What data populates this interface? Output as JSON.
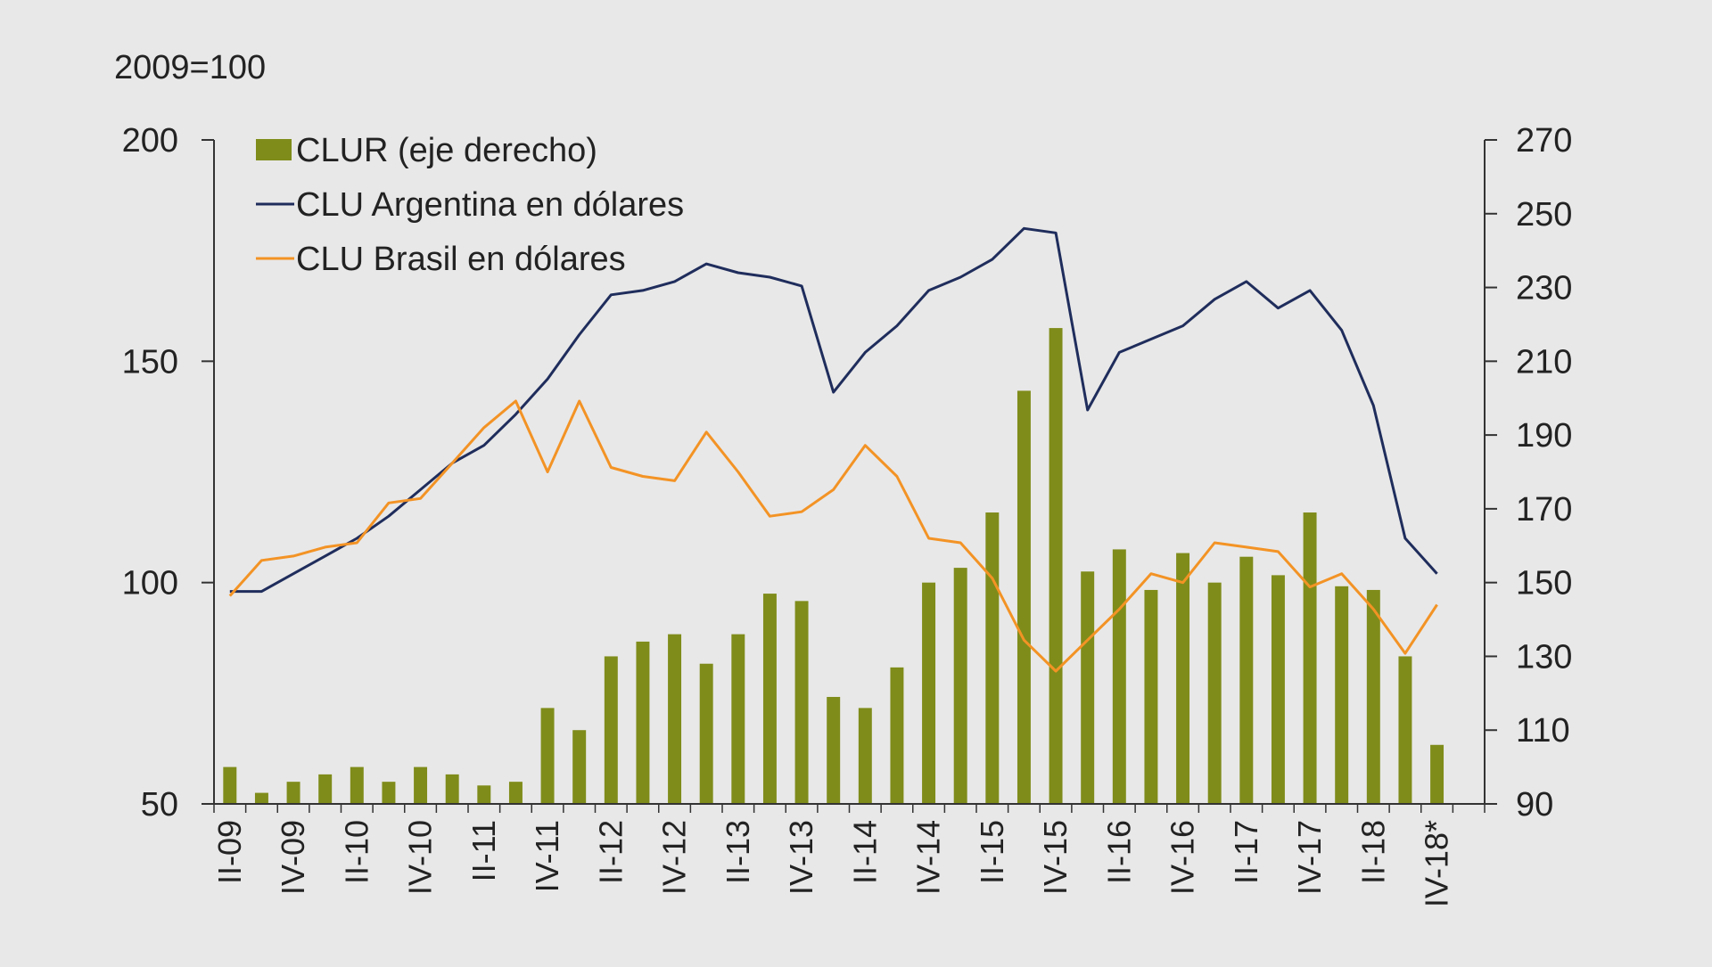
{
  "chart_data": {
    "type": "bar-line-combo",
    "y_left_label": "2009=100",
    "y_left_lim": [
      50,
      200
    ],
    "y_left_ticks": [
      50,
      100,
      150,
      200
    ],
    "y_right_lim": [
      90,
      270
    ],
    "y_right_ticks": [
      90,
      110,
      130,
      150,
      170,
      190,
      210,
      230,
      250,
      270
    ],
    "x_tick_labels": [
      "II-09",
      "IV-09",
      "II-10",
      "IV-10",
      "II-11",
      "IV-11",
      "II-12",
      "IV-12",
      "II-13",
      "IV-13",
      "II-14",
      "IV-14",
      "II-15",
      "IV-15",
      "II-16",
      "IV-16",
      "II-17",
      "IV-17",
      "II-18",
      "IV-18*"
    ],
    "x_tick_every": 2,
    "n_points": 40,
    "legend_position": "top-left",
    "colors": {
      "bar": "#7f8c1a",
      "argentina": "#1f2d5c",
      "brasil": "#f39325",
      "axis": "#333333"
    },
    "series": [
      {
        "name": "CLUR (eje derecho)",
        "type": "bar",
        "axis": "right",
        "values": [
          100,
          93,
          96,
          98,
          100,
          96,
          100,
          98,
          95,
          96,
          116,
          110,
          130,
          134,
          136,
          128,
          136,
          147,
          145,
          119,
          116,
          127,
          150,
          154,
          169,
          202,
          219,
          153,
          159,
          148,
          158,
          150,
          157,
          152,
          169,
          149,
          148,
          130,
          106,
          null
        ]
      },
      {
        "name": "CLU Argentina en dólares",
        "type": "line",
        "axis": "left",
        "values": [
          98,
          98,
          102,
          106,
          110,
          115,
          121,
          127,
          131,
          138,
          146,
          156,
          165,
          166,
          168,
          172,
          170,
          169,
          167,
          143,
          152,
          158,
          166,
          169,
          173,
          180,
          179,
          139,
          152,
          155,
          158,
          164,
          168,
          162,
          166,
          157,
          140,
          110,
          102,
          null
        ]
      },
      {
        "name": "CLU Brasil en dólares",
        "type": "line",
        "axis": "left",
        "values": [
          97,
          105,
          106,
          108,
          109,
          118,
          119,
          127,
          135,
          141,
          125,
          141,
          126,
          124,
          123,
          134,
          125,
          115,
          116,
          121,
          131,
          124,
          110,
          109,
          101,
          87,
          80,
          87,
          94,
          102,
          100,
          109,
          108,
          107,
          99,
          102,
          94,
          84,
          95,
          null
        ]
      }
    ]
  }
}
